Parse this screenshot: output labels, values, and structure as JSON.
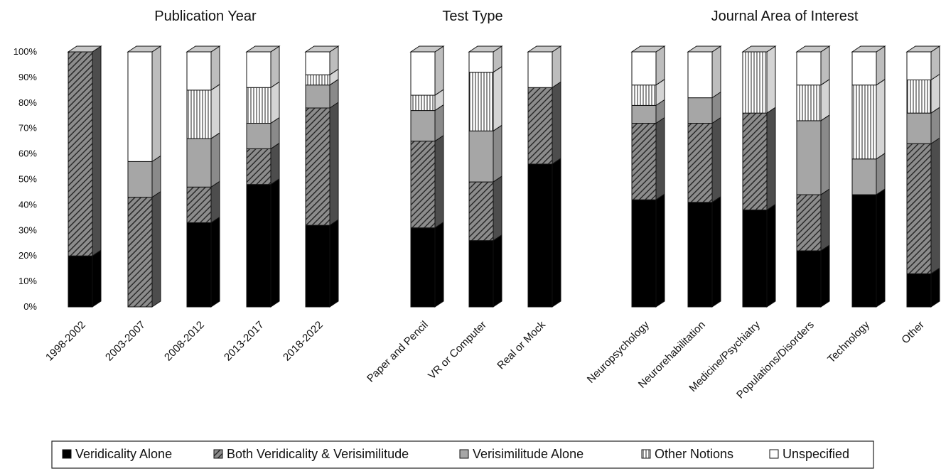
{
  "chart_data": {
    "type": "bar",
    "stacked": true,
    "percent": true,
    "ylim": [
      0,
      100
    ],
    "yticks": [
      "0%",
      "10%",
      "20%",
      "30%",
      "40%",
      "50%",
      "60%",
      "70%",
      "80%",
      "90%",
      "100%"
    ],
    "grid": false,
    "legend_position": "bottom",
    "series": [
      {
        "name": "Veridicality Alone",
        "pattern": "solid-black"
      },
      {
        "name": "Both Veridicality & Verisimilitude",
        "pattern": "diagonal-hatch"
      },
      {
        "name": "Verisimilitude Alone",
        "pattern": "solid-gray"
      },
      {
        "name": "Other Notions",
        "pattern": "vertical-lines"
      },
      {
        "name": "Unspecified",
        "pattern": "white"
      }
    ],
    "panels": [
      {
        "title": "Publication Year",
        "categories": [
          "1998-2002",
          "2003-2007",
          "2008-2012",
          "2013-2017",
          "2018-2022"
        ],
        "values": [
          [
            20,
            80,
            0,
            0,
            0
          ],
          [
            0,
            43,
            14,
            0,
            43
          ],
          [
            33,
            14,
            19,
            19,
            15
          ],
          [
            48,
            14,
            10,
            14,
            14
          ],
          [
            32,
            46,
            9,
            4,
            9
          ]
        ]
      },
      {
        "title": "Test Type",
        "categories": [
          "Paper and Pencil",
          "VR or Computer",
          "Real or Mock"
        ],
        "values": [
          [
            31,
            34,
            12,
            6,
            17
          ],
          [
            26,
            23,
            20,
            23,
            8
          ],
          [
            56,
            30,
            0,
            0,
            14
          ]
        ]
      },
      {
        "title": "Journal Area of Interest",
        "categories": [
          "Neuropsychology",
          "Neurorehabilitation",
          "Medicine/Psychiatry",
          "Populations/Disorders",
          "Technology",
          "Other"
        ],
        "values": [
          [
            42,
            30,
            7,
            8,
            13
          ],
          [
            41,
            31,
            10,
            0,
            18
          ],
          [
            38,
            38,
            0,
            24,
            0
          ],
          [
            22,
            22,
            29,
            14,
            13
          ],
          [
            44,
            0,
            14,
            29,
            13
          ],
          [
            13,
            51,
            12,
            13,
            11
          ]
        ]
      }
    ]
  }
}
